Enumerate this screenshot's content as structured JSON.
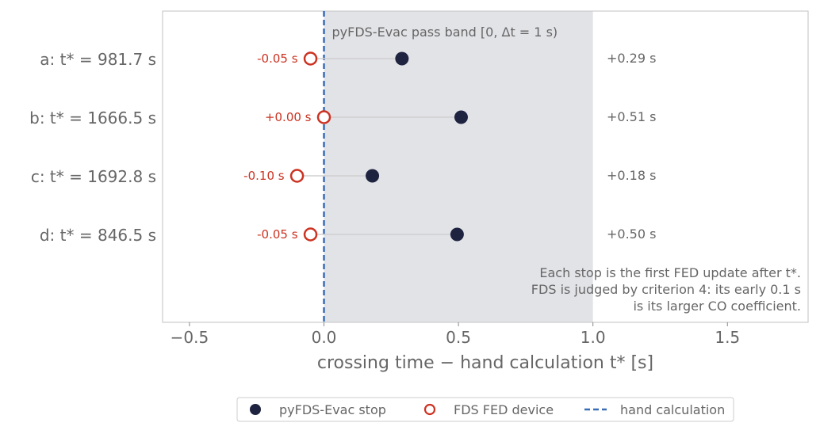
{
  "chart_data": {
    "type": "scatter",
    "xlabel": "crossing time − hand calculation t* [s]",
    "xlim": [
      -0.6,
      1.8
    ],
    "xticks": [
      {
        "value": -0.5,
        "label": "−0.5"
      },
      {
        "value": 0.0,
        "label": "0.0"
      },
      {
        "value": 0.5,
        "label": "0.5"
      },
      {
        "value": 1.0,
        "label": "1.0"
      },
      {
        "value": 1.5,
        "label": "1.5"
      }
    ],
    "grid": false,
    "pass_band": {
      "range": [
        0,
        1
      ],
      "label": "pyFDS-Evac pass band [0, Δt = 1 s)"
    },
    "reference_line": {
      "x": 0,
      "name": "hand calculation"
    },
    "categories": [
      {
        "label": "a: t* = 981.7 s",
        "fds": -0.05,
        "fds_label": "-0.05 s",
        "evac": 0.29,
        "evac_label": "+0.29 s"
      },
      {
        "label": "b: t* = 1666.5 s",
        "fds": 0.0,
        "fds_label": "+0.00 s",
        "evac": 0.51,
        "evac_label": "+0.51 s"
      },
      {
        "label": "c: t* = 1692.8 s",
        "fds": -0.1,
        "fds_label": "-0.10 s",
        "evac": 0.18,
        "evac_label": "+0.18 s"
      },
      {
        "label": "d: t* = 846.5 s",
        "fds": -0.05,
        "fds_label": "-0.05 s",
        "evac": 0.495,
        "evac_label": "+0.50 s"
      }
    ],
    "series": [
      {
        "name": "pyFDS-Evac stop",
        "color": "#1e2340",
        "marker": "filled-circle"
      },
      {
        "name": "FDS FED device",
        "color": "#cc3322",
        "marker": "open-circle"
      },
      {
        "name": "hand calculation",
        "color": "#3a6db5",
        "marker": "dashed-line"
      }
    ],
    "annotation": [
      "Each stop is the first FED update after t*.",
      "FDS is judged by criterion 4: its early 0.1 s",
      "is its larger CO coefficient."
    ],
    "legend_position": "bottom-center",
    "colors": {
      "band": "#e2e3e7",
      "connector": "#d0d0d0",
      "frame": "#cccccc"
    }
  }
}
